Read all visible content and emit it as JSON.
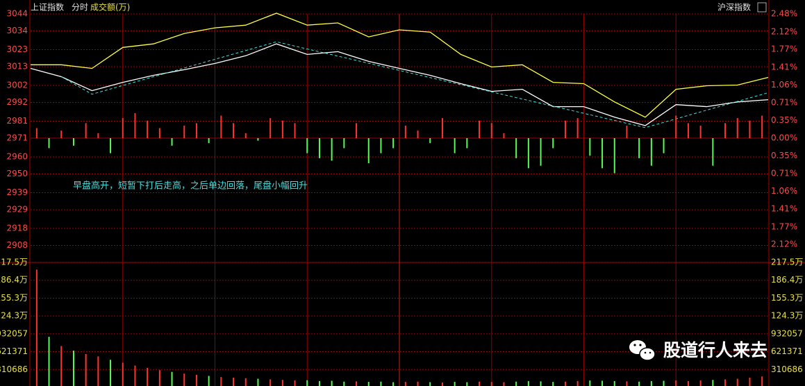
{
  "header": {
    "index": "上证指数",
    "mode": "分时",
    "indicator": "成交额(万)",
    "switch": "沪深指数"
  },
  "watermark": "股道行人来去",
  "chart_data": [
    {
      "type": "line",
      "annotation": "早盘高开，短暂下打后走高，之后单边回落，尾盘小幅回升",
      "xlim": [
        0,
        240
      ],
      "x": [
        0,
        10,
        20,
        30,
        40,
        50,
        60,
        70,
        80,
        90,
        100,
        110,
        120,
        130,
        140,
        150,
        160,
        170,
        180,
        190,
        200,
        210,
        220,
        230,
        240
      ],
      "series": [
        {
          "color": "#ffffff",
          "values": [
            3012.0,
            3007.1,
            2998.9,
            3003.8,
            3007.9,
            3011.2,
            3014.9,
            3019.4,
            3026.4,
            3020.2,
            3021.8,
            3016.1,
            3012.0,
            3007.9,
            3003.0,
            2998.5,
            2999.7,
            2989.5,
            2989.5,
            2983.3,
            2978.4,
            2990.7,
            2989.5,
            2992.3,
            2993.6
          ]
        },
        {
          "color": "#ffff40",
          "values": [
            3014.1,
            3014.1,
            3012.0,
            3024.3,
            3026.4,
            3032.5,
            3035.8,
            3037.4,
            3044.4,
            3037.4,
            3038.7,
            3030.5,
            3034.6,
            3033.3,
            3020.2,
            3012.8,
            3014.1,
            3003.8,
            3003.0,
            2992.3,
            2983.3,
            2999.7,
            3001.8,
            3002.2,
            3006.7
          ]
        },
        {
          "color": "#40e0e0",
          "dash": true,
          "x": [
            10,
            20,
            80,
            200,
            240
          ],
          "values": [
            3007.1,
            2996.8,
            3027.6,
            2977.2,
            2997.7
          ]
        }
      ],
      "ylim": [
        2898,
        3044
      ],
      "yticks": [
        3044,
        3034,
        3023,
        3013,
        3002,
        2992,
        2981,
        2971,
        2960,
        2950,
        2939,
        2929,
        2918,
        2908
      ],
      "y2lim": [
        -2.48,
        2.48
      ],
      "y2ticks": [
        {
          "value": 2.48,
          "label": "2.48%"
        },
        {
          "value": 2.12,
          "label": "2.12%"
        },
        {
          "value": 1.77,
          "label": "1.77%"
        },
        {
          "value": 1.41,
          "label": "1.41%"
        },
        {
          "value": 1.06,
          "label": "1.06%"
        },
        {
          "value": 0.71,
          "label": "0.71%"
        },
        {
          "value": 0.35,
          "label": "0.35%"
        },
        {
          "value": 0,
          "label": "0.00%"
        },
        {
          "value": -0.35,
          "label": "0.35%"
        },
        {
          "value": -0.71,
          "label": "0.71%"
        },
        {
          "value": -1.06,
          "label": "1.06%"
        },
        {
          "value": -1.41,
          "label": "1.41%"
        },
        {
          "value": -1.77,
          "label": "1.77%"
        },
        {
          "value": -2.12,
          "label": "2.12%"
        }
      ],
      "grid": true
    },
    {
      "type": "bar",
      "axis": "y2",
      "up_color": "#ff3232",
      "down_color": "#54fc54",
      "values": [
        0.2,
        -0.2,
        0.15,
        -0.15,
        0.3,
        0.1,
        -0.3,
        0.4,
        0.5,
        0.35,
        0.2,
        -0.15,
        0.25,
        0.3,
        -0.1,
        0.45,
        0.3,
        0.1,
        -0.05,
        0.4,
        0.35,
        0.3,
        -0.3,
        -0.4,
        -0.45,
        -0.2,
        0.3,
        -0.5,
        -0.3,
        -0.2,
        0.25,
        0.15,
        -0.1,
        0.4,
        -0.3,
        -0.2,
        0.35,
        0.3,
        0.1,
        -0.4,
        -0.6,
        -0.55,
        -0.2,
        0.35,
        0.4,
        -0.35,
        -0.6,
        -0.7,
        0.25,
        -0.4,
        -0.55,
        -0.3,
        0.45,
        0.3,
        0.25,
        -0.55,
        0.3,
        0.4,
        0.35,
        0.45
      ]
    },
    {
      "type": "volume",
      "up_color": "#ff3232",
      "down_color": "#54fc54",
      "values": [
        2050000,
        880000,
        720000,
        640000,
        580000,
        540000,
        480000,
        430000,
        380000,
        340000,
        300000,
        270000,
        240000,
        220000,
        200000,
        180000,
        170000,
        160000,
        150000,
        140000,
        130000,
        120000,
        125000,
        110000,
        115000,
        100000,
        105000,
        95000,
        100000,
        90000,
        95000,
        100000,
        90000,
        85000,
        95000,
        90000,
        100000,
        95000,
        90000,
        100000,
        110000,
        105000,
        95000,
        100000,
        110000,
        120000,
        115000,
        110000,
        105000,
        100000,
        110000,
        115000,
        120000,
        110000,
        120000,
        130000,
        140000,
        150000,
        170000,
        190000
      ],
      "ylim": [
        0,
        2175000
      ],
      "yticks": [
        {
          "value": 2175000,
          "label": "217.5万"
        },
        {
          "value": 1864000,
          "label": "186.4万"
        },
        {
          "value": 1553000,
          "label": "155.3万"
        },
        {
          "value": 1243000,
          "label": "124.3万"
        },
        932057,
        621371,
        310686
      ],
      "grid": true
    }
  ]
}
